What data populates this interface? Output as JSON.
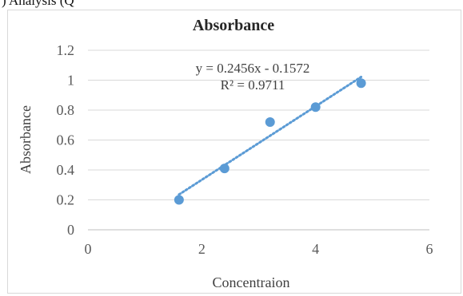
{
  "fragment": {
    "text": ") Analysis (Q"
  },
  "chart_data": {
    "type": "scatter",
    "title": "Absorbance",
    "xlabel": "Concentraion",
    "ylabel": "Absorbance",
    "xlim": [
      0,
      6
    ],
    "ylim": [
      0,
      1.2
    ],
    "x_ticks": [
      0,
      2,
      4,
      6
    ],
    "y_ticks": [
      0,
      0.2,
      0.4,
      0.6,
      0.8,
      1,
      1.2
    ],
    "x_tick_labels": [
      "0",
      "2",
      "4",
      "6"
    ],
    "y_tick_labels": [
      "0",
      "0.2",
      "0.4",
      "0.6",
      "0.8",
      "1",
      "1.2"
    ],
    "grid": "horizontal",
    "series": [
      {
        "x": [
          1.6,
          2.4,
          3.2,
          4.0,
          4.8
        ],
        "y": [
          0.2,
          0.41,
          0.72,
          0.82,
          0.98
        ],
        "color": "#5b9bd5"
      }
    ],
    "trendline": {
      "type": "linear",
      "slope": 0.2456,
      "intercept": -0.1572,
      "x_range": [
        1.6,
        4.8
      ],
      "style": "dotted",
      "color": "#5b9bd5"
    },
    "annotations": [
      "y = 0.2456x - 0.1572",
      "R² = 0.9711"
    ]
  }
}
